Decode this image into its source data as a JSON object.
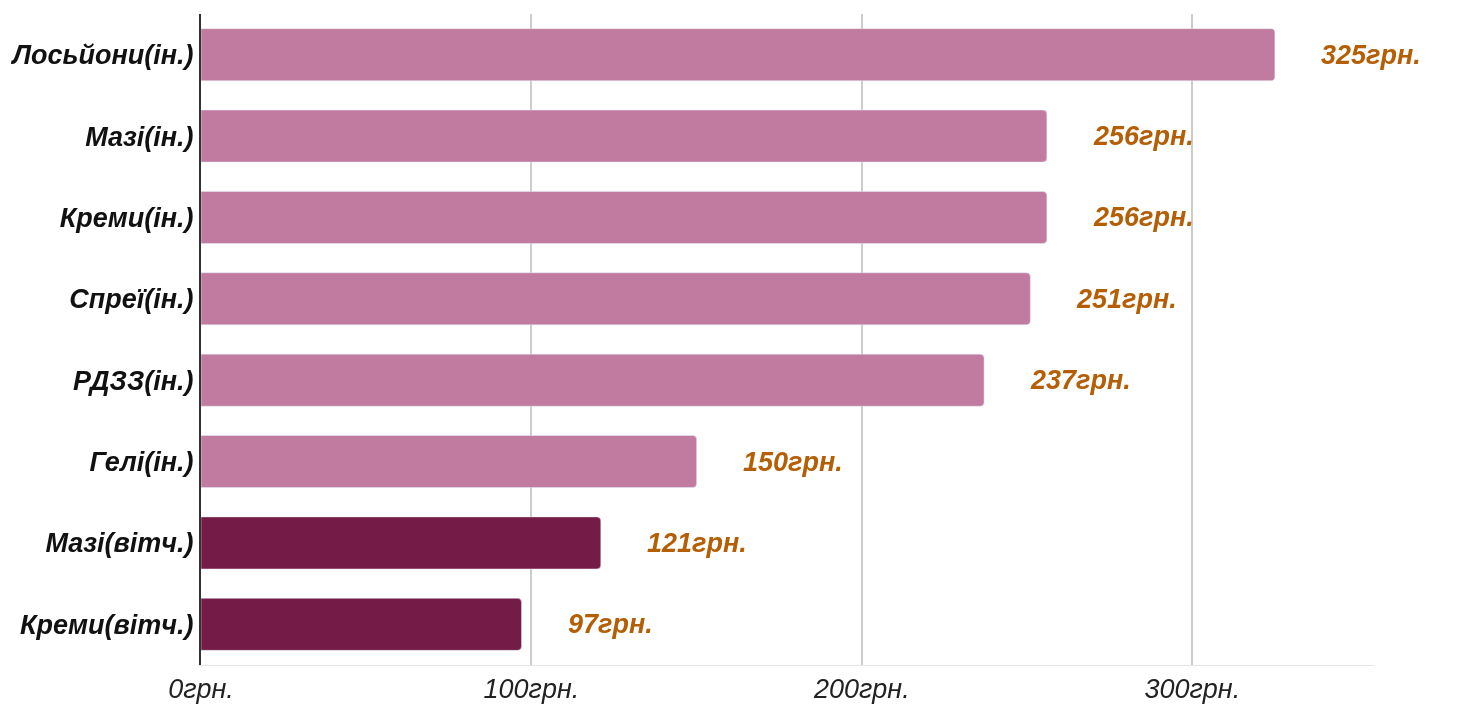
{
  "chart_data": {
    "type": "bar",
    "orientation": "horizontal",
    "categories": [
      "Лосьйони(ін.)",
      "Мазі(ін.)",
      "Креми(ін.)",
      "Спреї(ін.)",
      "РДЗЗ(ін.)",
      "Гелі(ін.)",
      "Мазі(вітч.)",
      "Креми(вітч.)"
    ],
    "values": [
      325,
      256,
      256,
      251,
      237,
      150,
      121,
      97
    ],
    "colors": [
      "#c27ba0",
      "#c27ba0",
      "#c27ba0",
      "#c27ba0",
      "#c27ba0",
      "#c27ba0",
      "#741b47",
      "#741b47"
    ],
    "value_labels": [
      "325грн.",
      "256грн.",
      "256грн.",
      "251грн.",
      "237грн.",
      "150грн.",
      "121грн.",
      "97грн."
    ],
    "xlim": [
      0,
      355
    ],
    "xticks": [
      {
        "value": 0,
        "label": "0грн."
      },
      {
        "value": 100,
        "label": "100грн."
      },
      {
        "value": 200,
        "label": "200грн."
      },
      {
        "value": 300,
        "label": "300грн."
      }
    ],
    "grid": "x",
    "legend": false
  }
}
